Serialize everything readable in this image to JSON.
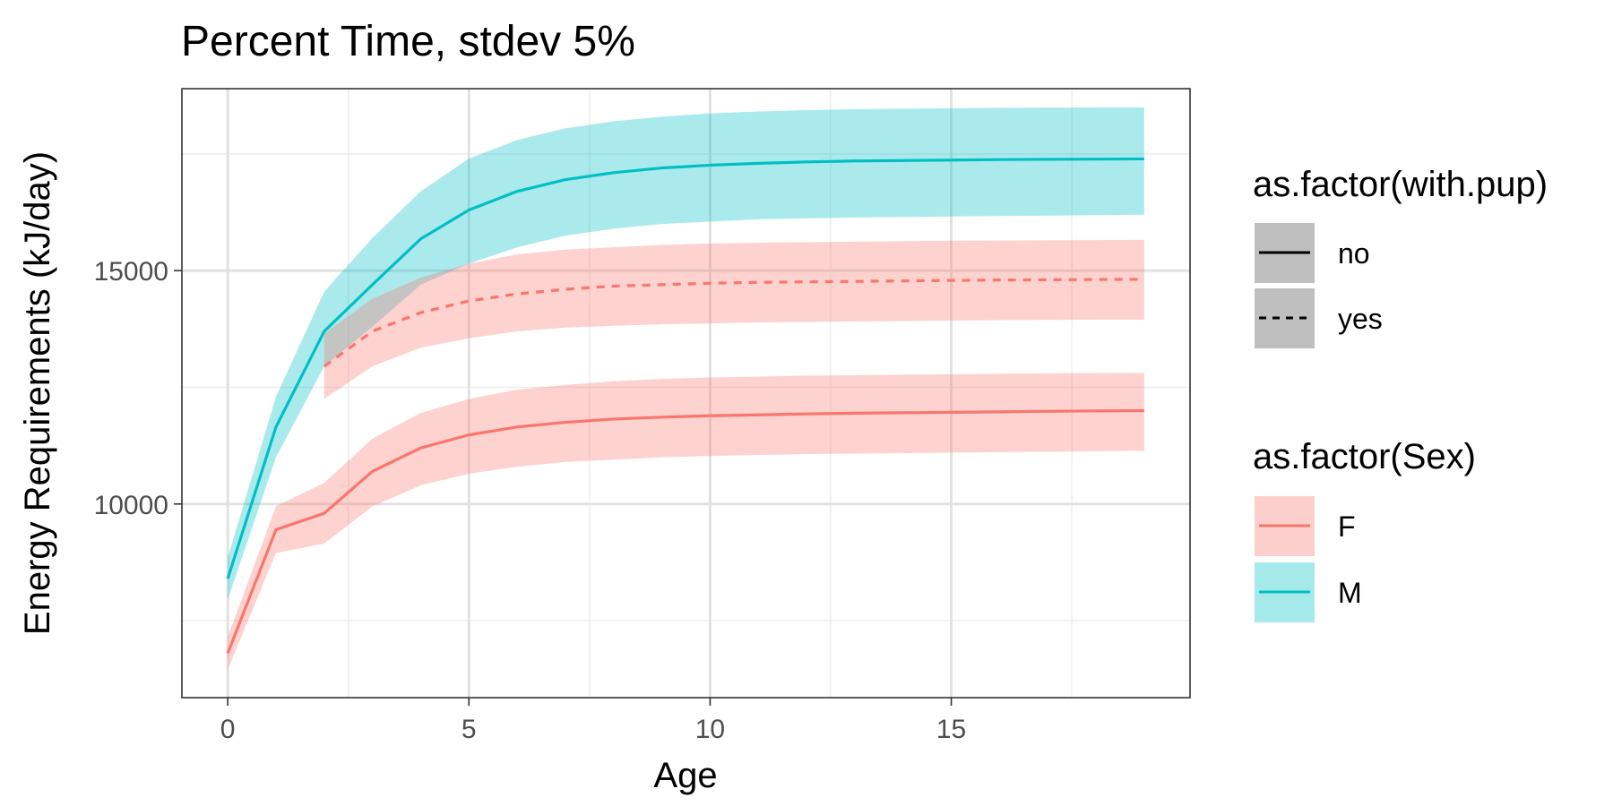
{
  "chart_data": {
    "type": "line",
    "title": "Percent Time, stdev 5%",
    "xlabel": "Age",
    "ylabel": "Energy Requirements (kJ/day)",
    "xlim": [
      -0.95,
      19.95
    ],
    "ylim": [
      5850,
      18900
    ],
    "x_ticks": [
      0,
      5,
      10,
      15
    ],
    "y_ticks": [
      10000,
      15000
    ],
    "x_tick_labels": [
      "0",
      "5",
      "10",
      "15"
    ],
    "y_tick_labels": [
      "10000",
      "15000"
    ],
    "x_minor_ticks": [
      2.5,
      7.5,
      12.5,
      17.5
    ],
    "y_minor_ticks": [
      7500,
      12500,
      17500
    ],
    "grid": true,
    "colors": {
      "F": "#F8766D",
      "M": "#00BFC4",
      "legend_key_fill": "#bfbfbf"
    },
    "series": [
      {
        "name": "M",
        "sex": "M",
        "with_pup": "no",
        "linetype": "solid",
        "x": [
          0,
          1,
          2,
          3,
          4,
          5,
          6,
          7,
          8,
          9,
          10,
          11,
          12,
          13,
          14,
          15,
          16,
          17,
          18,
          19
        ],
        "y": [
          8400,
          11650,
          13700,
          14700,
          15680,
          16300,
          16700,
          16950,
          17100,
          17200,
          17260,
          17300,
          17330,
          17350,
          17360,
          17370,
          17380,
          17385,
          17390,
          17395
        ],
        "lower": [
          7950,
          11000,
          12950,
          13800,
          14700,
          15150,
          15500,
          15750,
          15900,
          16000,
          16050,
          16100,
          16120,
          16140,
          16150,
          16160,
          16170,
          16180,
          16190,
          16200
        ],
        "upper": [
          8850,
          12300,
          14550,
          15700,
          16700,
          17400,
          17800,
          18050,
          18200,
          18300,
          18370,
          18410,
          18440,
          18460,
          18470,
          18480,
          18490,
          18495,
          18500,
          18500
        ]
      },
      {
        "name": "F",
        "sex": "F",
        "with_pup": "yes",
        "linetype": "dashed",
        "x": [
          2,
          3,
          4,
          5,
          6,
          7,
          8,
          9,
          10,
          11,
          12,
          13,
          14,
          15,
          16,
          17,
          18,
          19
        ],
        "y": [
          12950,
          13700,
          14100,
          14350,
          14500,
          14600,
          14670,
          14700,
          14730,
          14750,
          14760,
          14770,
          14780,
          14790,
          14800,
          14805,
          14810,
          14815
        ],
        "lower": [
          12250,
          12950,
          13350,
          13550,
          13700,
          13780,
          13820,
          13850,
          13870,
          13890,
          13900,
          13910,
          13920,
          13930,
          13940,
          13945,
          13950,
          13950
        ],
        "upper": [
          13650,
          14400,
          14850,
          15150,
          15350,
          15450,
          15500,
          15550,
          15580,
          15600,
          15610,
          15620,
          15630,
          15640,
          15645,
          15650,
          15655,
          15660
        ]
      },
      {
        "name": "F",
        "sex": "F",
        "with_pup": "no",
        "linetype": "solid",
        "x": [
          0,
          1,
          2,
          3,
          4,
          5,
          6,
          7,
          8,
          9,
          10,
          11,
          12,
          13,
          14,
          15,
          16,
          17,
          18,
          19
        ],
        "y": [
          6800,
          9450,
          9800,
          10700,
          11200,
          11480,
          11650,
          11750,
          11820,
          11860,
          11890,
          11910,
          11930,
          11945,
          11955,
          11965,
          11975,
          11985,
          11995,
          12000
        ],
        "lower": [
          6450,
          8950,
          9150,
          9950,
          10400,
          10650,
          10800,
          10900,
          10950,
          11000,
          11030,
          11050,
          11070,
          11080,
          11090,
          11100,
          11110,
          11120,
          11130,
          11140
        ],
        "upper": [
          7150,
          9950,
          10450,
          11400,
          11950,
          12250,
          12450,
          12550,
          12630,
          12680,
          12710,
          12730,
          12750,
          12760,
          12770,
          12780,
          12790,
          12800,
          12805,
          12810
        ]
      }
    ],
    "legends": [
      {
        "title": "as.factor(with.pup)",
        "items": [
          {
            "label": "no",
            "linetype": "solid"
          },
          {
            "label": "yes",
            "linetype": "dashed"
          }
        ]
      },
      {
        "title": "as.factor(Sex)",
        "items": [
          {
            "label": "F",
            "color": "#F8766D"
          },
          {
            "label": "M",
            "color": "#00BFC4"
          }
        ]
      }
    ],
    "legend_position": "right"
  }
}
